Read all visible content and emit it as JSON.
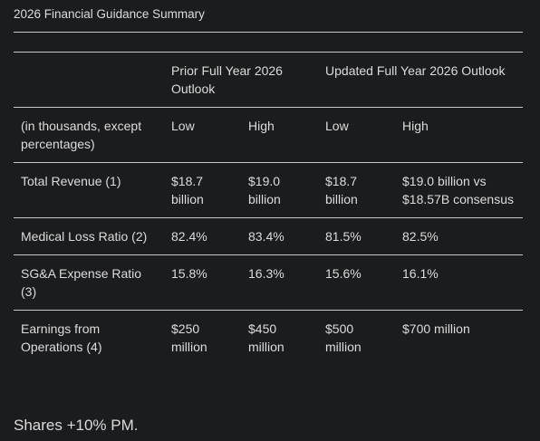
{
  "title": "2026 Financial Guidance Summary",
  "table": {
    "groups": [
      "Prior Full Year 2026 Outlook",
      "Updated Full Year 2026 Outlook"
    ],
    "subheader": [
      "(in thousands, except percentages)",
      "Low",
      "High",
      "Low",
      "High"
    ],
    "rows": [
      [
        "Total Revenue (1)",
        "$18.7 billion",
        "$19.0 billion",
        "$18.7 billion",
        "$19.0 billion vs $18.57B consensus"
      ],
      [
        "Medical Loss Ratio (2)",
        "82.4%",
        "83.4%",
        "81.5%",
        "82.5%"
      ],
      [
        "SG&A Expense Ratio (3)",
        "15.8%",
        "16.3%",
        "15.6%",
        "16.1%"
      ],
      [
        "Earnings from Operations (4)",
        "$250 million",
        "$450 million",
        "$500 million",
        "$700 million"
      ]
    ]
  },
  "footer": "Shares +10% PM."
}
